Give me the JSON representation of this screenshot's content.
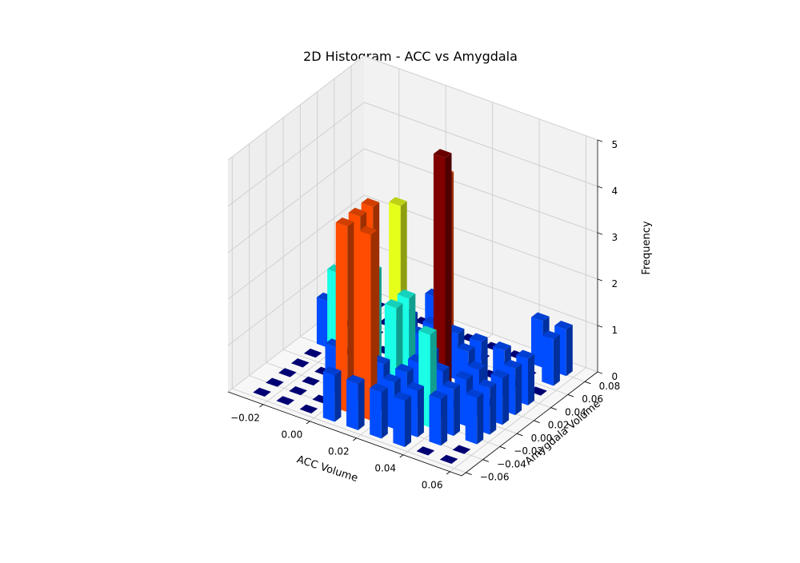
{
  "chart_data": {
    "type": "bar3d",
    "title": "2D Histogram - ACC vs Amygdala",
    "xlabel": "ACC Volume",
    "ylabel": "Amygdala Volume",
    "zlabel": "Frequency",
    "xlim": [
      -0.035,
      0.065
    ],
    "ylim": [
      -0.065,
      0.095
    ],
    "zlim": [
      0,
      5
    ],
    "xticks": [
      "−0.02",
      "0.00",
      "0.02",
      "0.04",
      "0.06"
    ],
    "xtick_values": [
      -0.02,
      0,
      0.02,
      0.04,
      0.06
    ],
    "yticks": [
      "−0.06",
      "−0.04",
      "−0.02",
      "0.00",
      "0.02",
      "0.04",
      "0.06",
      "0.08"
    ],
    "ytick_values": [
      -0.06,
      -0.04,
      -0.02,
      0,
      0.02,
      0.04,
      0.06,
      0.08
    ],
    "zticks": [
      "0",
      "1",
      "2",
      "3",
      "4",
      "5"
    ],
    "ztick_values": [
      0,
      1,
      2,
      3,
      4,
      5
    ],
    "grid": true,
    "colormap": "jet",
    "x_bin_edges": [
      -0.03,
      -0.02,
      -0.01,
      0.0,
      0.01,
      0.02,
      0.03,
      0.04,
      0.05,
      0.06
    ],
    "y_bin_edges": [
      -0.06,
      -0.045,
      -0.03,
      -0.015,
      0.0,
      0.015,
      0.03,
      0.045,
      0.06,
      0.075,
      0.09
    ],
    "counts": [
      [
        0,
        0,
        0,
        0,
        0,
        1,
        0,
        0,
        0,
        0
      ],
      [
        0,
        0,
        0,
        0,
        2,
        0,
        2,
        0,
        0,
        0
      ],
      [
        0,
        0,
        1,
        0,
        1,
        2,
        0,
        3,
        0,
        0
      ],
      [
        1,
        4,
        4,
        4,
        0,
        1,
        1,
        0,
        1,
        0
      ],
      [
        1,
        4,
        1,
        2,
        2,
        1,
        1,
        4,
        0,
        0
      ],
      [
        1,
        1,
        1,
        1,
        1,
        5,
        1,
        0,
        0,
        0
      ],
      [
        1,
        1,
        2,
        1,
        0,
        1,
        1,
        0,
        0,
        0
      ],
      [
        0,
        1,
        1,
        1,
        1,
        0,
        1,
        0,
        0,
        1
      ],
      [
        0,
        0,
        1,
        1,
        1,
        1,
        1,
        0,
        1,
        1
      ]
    ]
  }
}
